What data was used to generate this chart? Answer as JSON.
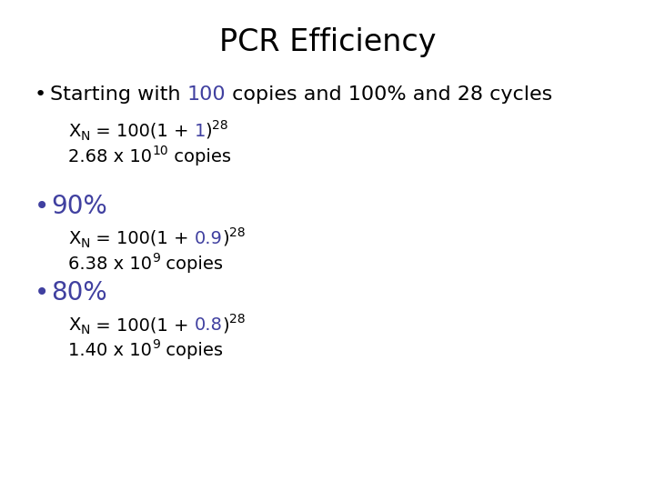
{
  "title": "PCR Efficiency",
  "background_color": "#ffffff",
  "black": "#000000",
  "blue": "#4040a0",
  "bullet": "•",
  "title_fontsize": 24,
  "body_fontsize": 16,
  "sub_fontsize": 14,
  "small_fontsize": 10,
  "big_bullet_fontsize": 20
}
